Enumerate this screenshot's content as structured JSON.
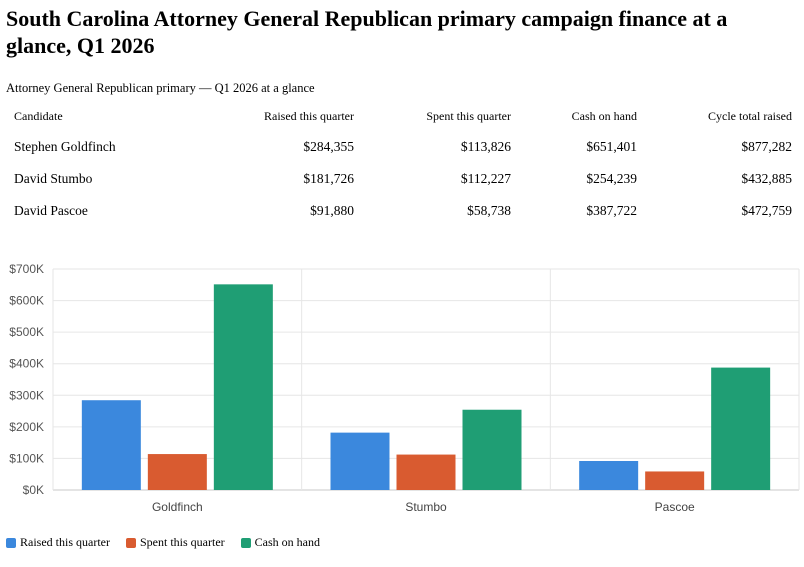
{
  "page": {
    "title": "South Carolina Attorney General Republican primary campaign finance at a glance, Q1 2026",
    "subtitle": "Attorney General Republican primary — Q1 2026 at a glance"
  },
  "table": {
    "headers": [
      "Candidate",
      "Raised this quarter",
      "Spent this quarter",
      "Cash on hand",
      "Cycle total raised"
    ],
    "rows": [
      [
        "Stephen Goldfinch",
        "$284,355",
        "$113,826",
        "$651,401",
        "$877,282"
      ],
      [
        "David Stumbo",
        "$181,726",
        "$112,227",
        "$254,239",
        "$432,885"
      ],
      [
        "David Pascoe",
        "$91,880",
        "$58,738",
        "$387,722",
        "$472,759"
      ]
    ]
  },
  "chart_data": {
    "type": "bar",
    "categories": [
      "Goldfinch",
      "Stumbo",
      "Pascoe"
    ],
    "series": [
      {
        "name": "Raised this quarter",
        "color": "#3b88dd",
        "values": [
          284355,
          181726,
          91880
        ]
      },
      {
        "name": "Spent this quarter",
        "color": "#d95b30",
        "values": [
          113826,
          112227,
          58738
        ]
      },
      {
        "name": "Cash on hand",
        "color": "#1f9e74",
        "values": [
          651401,
          254239,
          387722
        ]
      }
    ],
    "ylim": [
      0,
      700000
    ],
    "yticks": [
      0,
      100000,
      200000,
      300000,
      400000,
      500000,
      600000,
      700000
    ],
    "ytick_labels": [
      "$0K",
      "$100K",
      "$200K",
      "$300K",
      "$400K",
      "$500K",
      "$600K",
      "$700K"
    ],
    "grid": true,
    "legend_position": "bottom-left"
  }
}
